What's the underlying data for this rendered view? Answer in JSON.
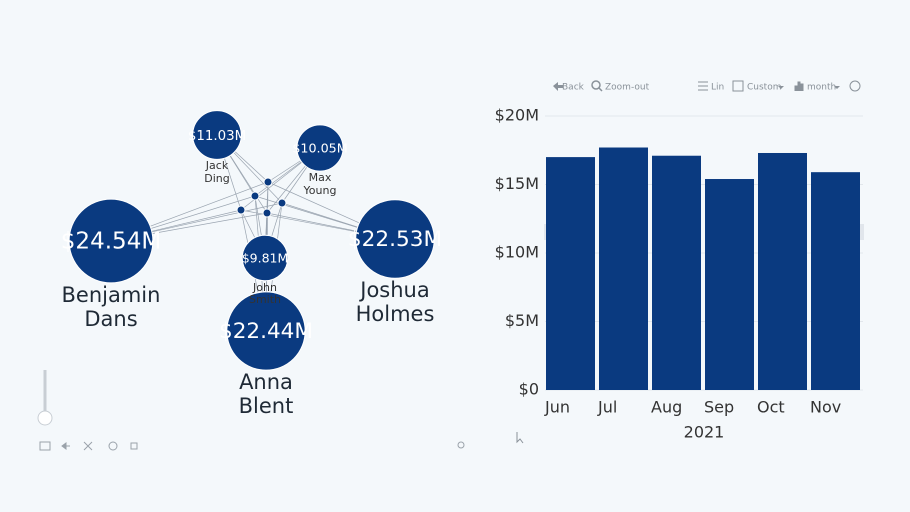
{
  "chart_data": [
    {
      "type": "network",
      "names": [
        "Jack Ding",
        "Max Young",
        "Benjamin Dans",
        "Joshua Holmes",
        "John Smith",
        "Anna Blent"
      ],
      "values": [
        11030000,
        10050000,
        24540000,
        22530000,
        9810000,
        22440000
      ],
      "value_labels": [
        "$11.03M",
        "$10.05M",
        "$24.54M",
        "$22.53M",
        "$9.81M",
        "$22.44M"
      ],
      "color": "#0a3a80"
    },
    {
      "type": "bar",
      "categories": [
        "Jun",
        "Jul",
        "Aug",
        "Sep",
        "Oct",
        "Nov"
      ],
      "values": [
        17000000,
        17700000,
        17100000,
        15400000,
        17300000,
        15900000
      ],
      "color": "#0a3a80",
      "xlabel": "2021",
      "ylim": [
        0,
        20000000
      ],
      "yticks": [
        {
          "value": 0,
          "label": "$0"
        },
        {
          "value": 5000000,
          "label": "$5M"
        },
        {
          "value": 10000000,
          "label": "$10M"
        },
        {
          "value": 15000000,
          "label": "$15M"
        },
        {
          "value": 20000000,
          "label": "$20M"
        }
      ],
      "grid": true
    }
  ],
  "toolbar": {
    "back": "Back",
    "zoom_out": "Zoom-out",
    "scale": "Lin",
    "range": "Custom",
    "period": "month"
  }
}
